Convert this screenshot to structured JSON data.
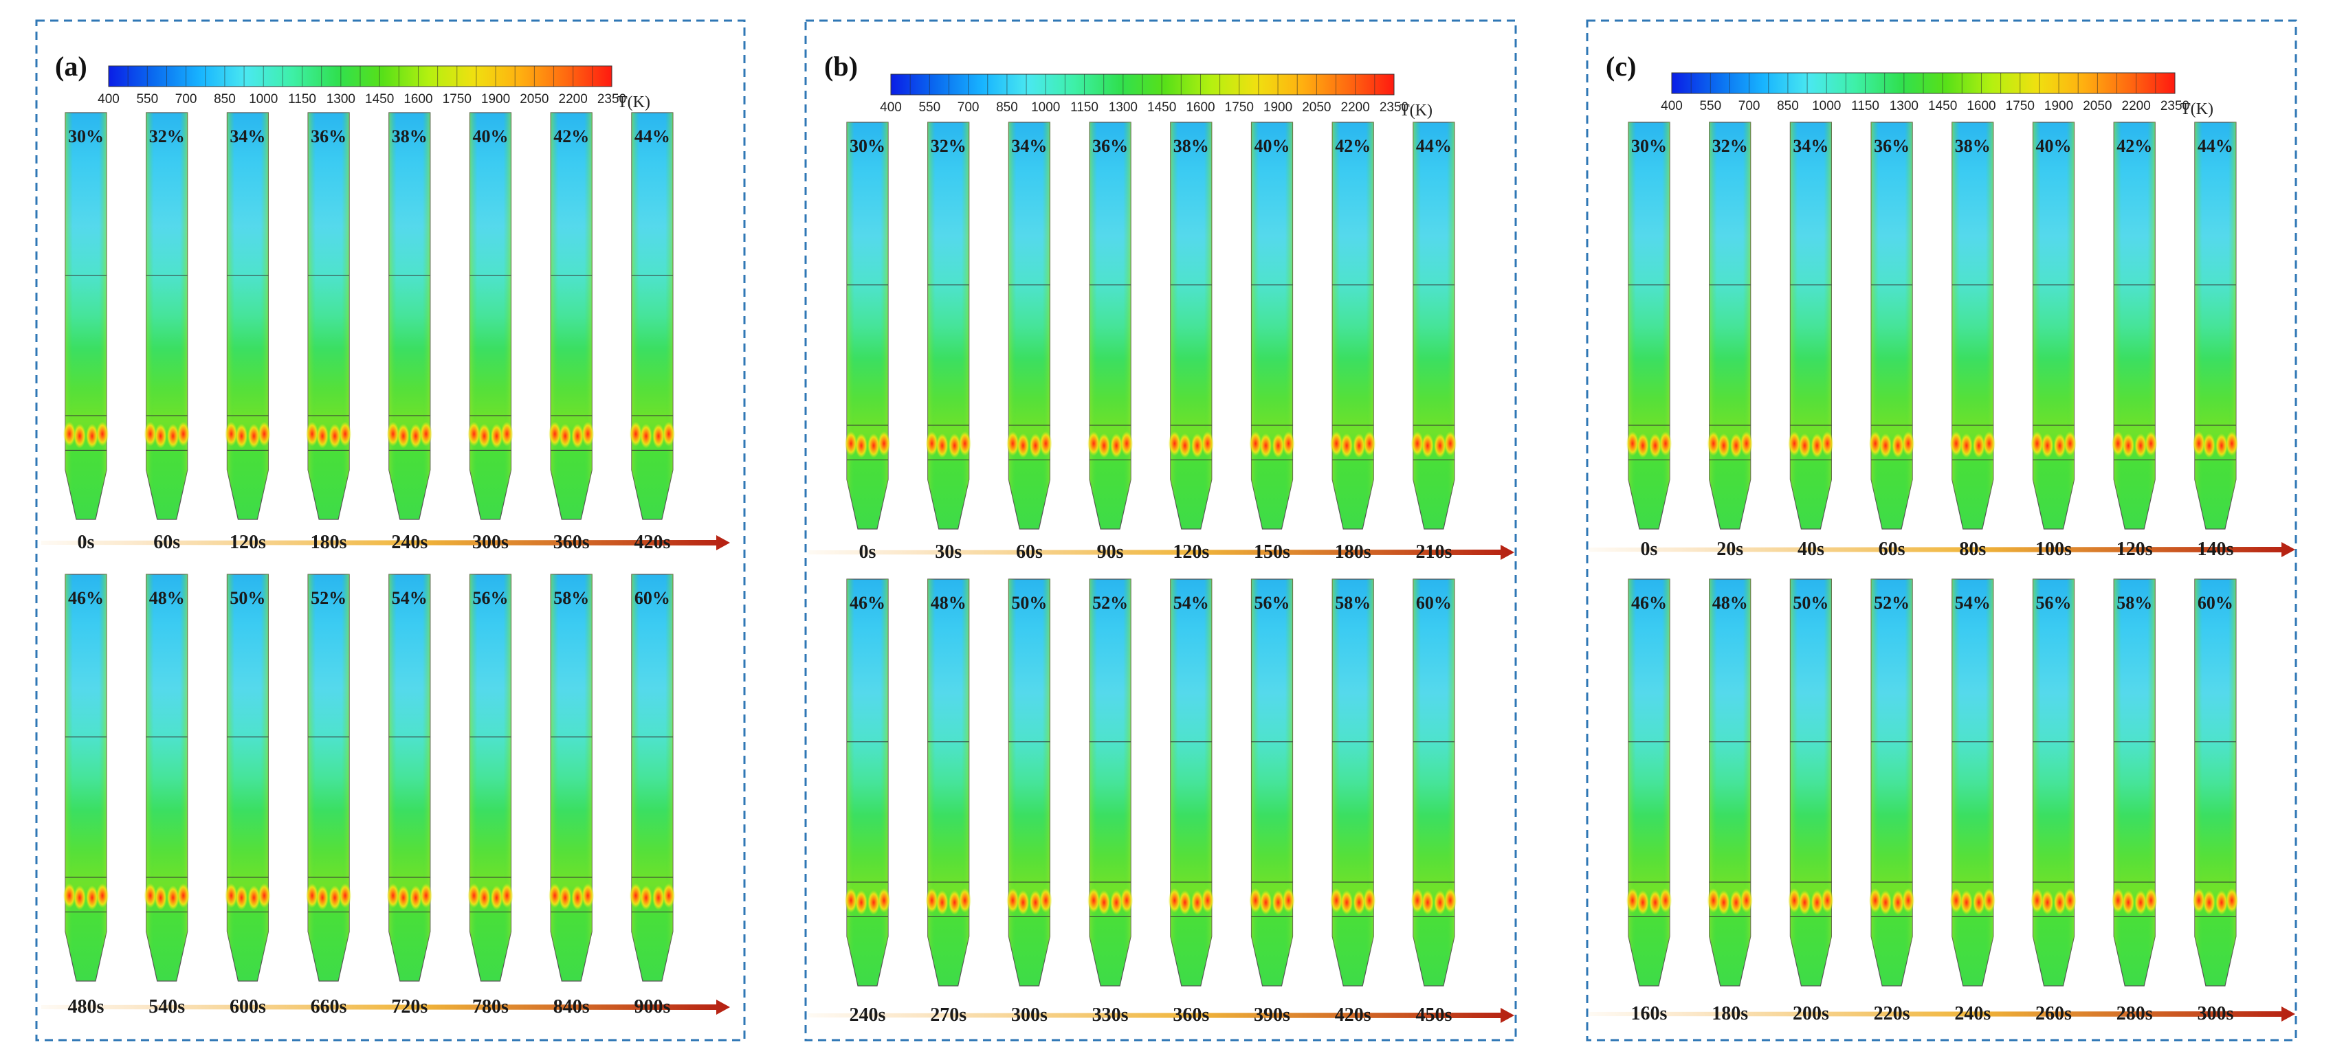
{
  "colorbar": {
    "ticks": [
      "400",
      "550",
      "700",
      "850",
      "1000",
      "1150",
      "1300",
      "1450",
      "1600",
      "1750",
      "1900",
      "2050",
      "2200",
      "2350"
    ],
    "unit": "T(K)",
    "stops": [
      "#0a1ee6",
      "#0a6cf0",
      "#18b4ff",
      "#4ae8f0",
      "#3ef0a8",
      "#30e050",
      "#58e018",
      "#b4f010",
      "#f0e010",
      "#ffb010",
      "#ff6a10",
      "#ff1a10"
    ]
  },
  "panels": [
    {
      "label": "(a)",
      "rows": [
        {
          "percents": [
            "30%",
            "32%",
            "34%",
            "36%",
            "38%",
            "40%",
            "42%",
            "44%"
          ],
          "times": [
            "0s",
            "60s",
            "120s",
            "180s",
            "240s",
            "300s",
            "360s",
            "420s"
          ]
        },
        {
          "percents": [
            "46%",
            "48%",
            "50%",
            "52%",
            "54%",
            "56%",
            "58%",
            "60%"
          ],
          "times": [
            "480s",
            "540s",
            "600s",
            "660s",
            "720s",
            "780s",
            "840s",
            "900s"
          ]
        }
      ]
    },
    {
      "label": "(b)",
      "rows": [
        {
          "percents": [
            "30%",
            "32%",
            "34%",
            "36%",
            "38%",
            "40%",
            "42%",
            "44%"
          ],
          "times": [
            "0s",
            "30s",
            "60s",
            "90s",
            "120s",
            "150s",
            "180s",
            "210s"
          ]
        },
        {
          "percents": [
            "46%",
            "48%",
            "50%",
            "52%",
            "54%",
            "56%",
            "58%",
            "60%"
          ],
          "times": [
            "240s",
            "270s",
            "300s",
            "330s",
            "360s",
            "390s",
            "420s",
            "450s"
          ]
        }
      ]
    },
    {
      "label": "(c)",
      "rows": [
        {
          "percents": [
            "30%",
            "32%",
            "34%",
            "36%",
            "38%",
            "40%",
            "42%",
            "44%"
          ],
          "times": [
            "0s",
            "20s",
            "40s",
            "60s",
            "80s",
            "100s",
            "120s",
            "140s"
          ]
        },
        {
          "percents": [
            "46%",
            "48%",
            "50%",
            "52%",
            "54%",
            "56%",
            "58%",
            "60%"
          ],
          "times": [
            "160s",
            "180s",
            "200s",
            "220s",
            "240s",
            "260s",
            "280s",
            "300s"
          ]
        }
      ]
    }
  ],
  "colors": {
    "frame": "#2f77b5",
    "arrow_start": "#fbe7c8",
    "arrow_mid": "#f0b53a",
    "arrow_end": "#b51f12"
  }
}
